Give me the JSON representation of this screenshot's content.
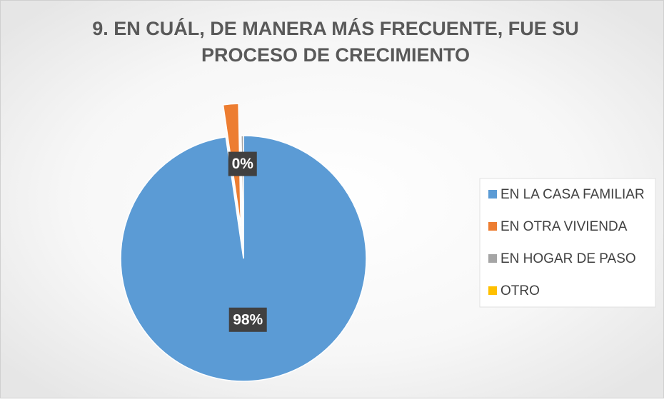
{
  "chart_data": {
    "type": "pie",
    "title": "9. EN CUÁL, DE MANERA MÁS FRECUENTE, FUE SU",
    "subtitle": "PROCESO DE CRECIMIENTO",
    "categories": [
      "EN LA CASA FAMILIAR",
      "EN OTRA VIVIENDA",
      "EN HOGAR DE PASO",
      "OTRO"
    ],
    "values": [
      97.7,
      2.0,
      0.3,
      0
    ],
    "value_labels": [
      "98%",
      null,
      "0%",
      null
    ],
    "colors": [
      "#5b9bd5",
      "#ed7d31",
      "#a5a5a5",
      "#ffc000"
    ],
    "legend": "right"
  }
}
